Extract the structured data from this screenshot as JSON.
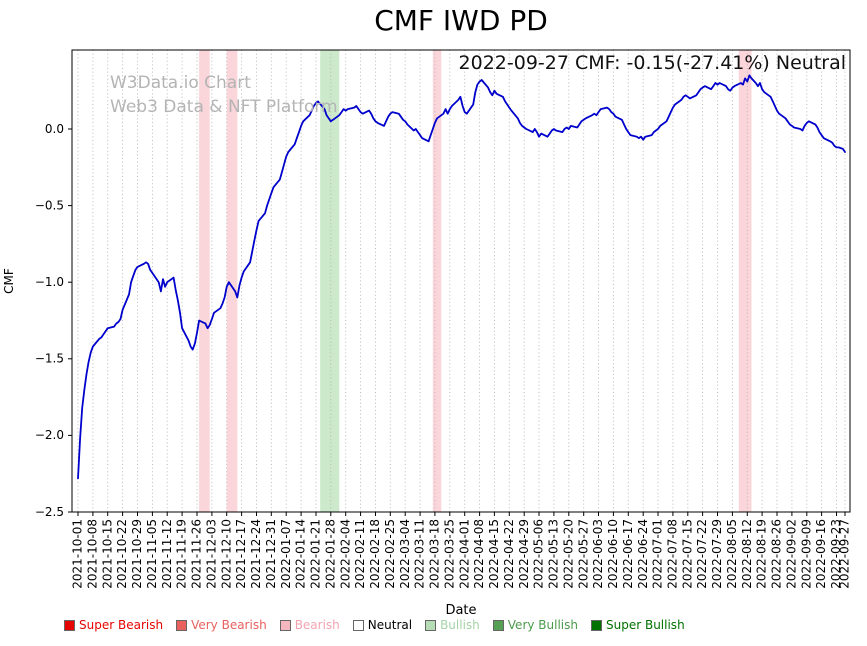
{
  "figure": {
    "annotation": "2022-09-27 CMF: -0.15(-27.41%) Neutral",
    "watermark_line1": "W3Data.io Chart",
    "watermark_line2": "Web3 Data & NFT Platform"
  },
  "chart_data": {
    "type": "line",
    "title": "CMF IWD PD",
    "xlabel": "Date",
    "ylabel": "CMF",
    "ylim": [
      -2.5,
      0.52
    ],
    "grid": "vertical-dotted",
    "legend_position": "bottom",
    "yticks": [
      0.0,
      -0.5,
      -1.0,
      -1.5,
      -2.0,
      -2.5
    ],
    "ytick_labels": [
      "0.0",
      "−0.5",
      "−1.0",
      "−1.5",
      "−2.0",
      "−2.5"
    ],
    "x_start_date": "2021-10-01",
    "x_tick_labels": [
      "2021-10-01",
      "2021-10-08",
      "2021-10-15",
      "2021-10-22",
      "2021-10-29",
      "2021-11-05",
      "2021-11-12",
      "2021-11-19",
      "2021-11-26",
      "2021-12-03",
      "2021-12-10",
      "2021-12-17",
      "2021-12-24",
      "2021-12-31",
      "2022-01-07",
      "2022-01-14",
      "2022-01-21",
      "2022-01-28",
      "2022-02-04",
      "2022-02-11",
      "2022-02-18",
      "2022-02-25",
      "2022-03-04",
      "2022-03-11",
      "2022-03-18",
      "2022-03-25",
      "2022-04-01",
      "2022-04-08",
      "2022-04-15",
      "2022-04-22",
      "2022-04-29",
      "2022-05-06",
      "2022-05-13",
      "2022-05-20",
      "2022-05-27",
      "2022-06-03",
      "2022-06-10",
      "2022-06-17",
      "2022-06-24",
      "2022-07-01",
      "2022-07-08",
      "2022-07-15",
      "2022-07-22",
      "2022-07-29",
      "2022-08-05",
      "2022-08-12",
      "2022-08-19",
      "2022-08-26",
      "2022-09-02",
      "2022-09-09",
      "2022-09-16",
      "2022-09-23",
      "2022-09-27"
    ],
    "latest": {
      "date": "2022-09-27",
      "cmf": -0.15,
      "change_pct": -27.41,
      "signal": "Neutral"
    },
    "series": [
      {
        "name": "CMF",
        "color": "#0000cc",
        "x_unit": "days since 2021-10-01",
        "points": [
          [
            0,
            -2.28
          ],
          [
            1,
            -2.02
          ],
          [
            2,
            -1.82
          ],
          [
            3,
            -1.7
          ],
          [
            4,
            -1.6
          ],
          [
            5,
            -1.52
          ],
          [
            6,
            -1.46
          ],
          [
            7,
            -1.42
          ],
          [
            10,
            -1.37
          ],
          [
            11,
            -1.36
          ],
          [
            12,
            -1.34
          ],
          [
            13,
            -1.32
          ],
          [
            14,
            -1.3
          ],
          [
            17,
            -1.29
          ],
          [
            18,
            -1.27
          ],
          [
            19,
            -1.26
          ],
          [
            20,
            -1.24
          ],
          [
            21,
            -1.18
          ],
          [
            24,
            -1.08
          ],
          [
            25,
            -1.0
          ],
          [
            26,
            -0.96
          ],
          [
            27,
            -0.92
          ],
          [
            28,
            -0.9
          ],
          [
            31,
            -0.88
          ],
          [
            32,
            -0.87
          ],
          [
            33,
            -0.88
          ],
          [
            34,
            -0.92
          ],
          [
            35,
            -0.94
          ],
          [
            38,
            -1.0
          ],
          [
            39,
            -1.06
          ],
          [
            40,
            -0.98
          ],
          [
            41,
            -1.03
          ],
          [
            42,
            -1.0
          ],
          [
            45,
            -0.97
          ],
          [
            46,
            -1.05
          ],
          [
            47,
            -1.12
          ],
          [
            48,
            -1.2
          ],
          [
            49,
            -1.3
          ],
          [
            52,
            -1.38
          ],
          [
            53,
            -1.42
          ],
          [
            54,
            -1.44
          ],
          [
            55,
            -1.4
          ],
          [
            56,
            -1.33
          ],
          [
            57,
            -1.25
          ],
          [
            60,
            -1.27
          ],
          [
            61,
            -1.3
          ],
          [
            62,
            -1.28
          ],
          [
            63,
            -1.24
          ],
          [
            64,
            -1.2
          ],
          [
            67,
            -1.17
          ],
          [
            68,
            -1.14
          ],
          [
            69,
            -1.1
          ],
          [
            70,
            -1.03
          ],
          [
            71,
            -1.0
          ],
          [
            74,
            -1.06
          ],
          [
            75,
            -1.1
          ],
          [
            76,
            -1.02
          ],
          [
            77,
            -0.97
          ],
          [
            78,
            -0.93
          ],
          [
            81,
            -0.87
          ],
          [
            82,
            -0.8
          ],
          [
            83,
            -0.73
          ],
          [
            84,
            -0.66
          ],
          [
            85,
            -0.6
          ],
          [
            88,
            -0.55
          ],
          [
            89,
            -0.5
          ],
          [
            90,
            -0.46
          ],
          [
            91,
            -0.42
          ],
          [
            92,
            -0.38
          ],
          [
            95,
            -0.33
          ],
          [
            96,
            -0.28
          ],
          [
            97,
            -0.23
          ],
          [
            98,
            -0.18
          ],
          [
            99,
            -0.15
          ],
          [
            102,
            -0.1
          ],
          [
            103,
            -0.06
          ],
          [
            104,
            -0.02
          ],
          [
            105,
            0.02
          ],
          [
            106,
            0.05
          ],
          [
            109,
            0.09
          ],
          [
            110,
            0.12
          ],
          [
            111,
            0.15
          ],
          [
            112,
            0.17
          ],
          [
            113,
            0.18
          ],
          [
            116,
            0.13
          ],
          [
            117,
            0.09
          ],
          [
            118,
            0.07
          ],
          [
            119,
            0.05
          ],
          [
            120,
            0.06
          ],
          [
            123,
            0.09
          ],
          [
            124,
            0.11
          ],
          [
            125,
            0.13
          ],
          [
            126,
            0.12
          ],
          [
            127,
            0.13
          ],
          [
            130,
            0.14
          ],
          [
            131,
            0.15
          ],
          [
            132,
            0.13
          ],
          [
            133,
            0.11
          ],
          [
            134,
            0.1
          ],
          [
            137,
            0.12
          ],
          [
            138,
            0.1
          ],
          [
            139,
            0.07
          ],
          [
            140,
            0.05
          ],
          [
            141,
            0.04
          ],
          [
            144,
            0.02
          ],
          [
            145,
            0.05
          ],
          [
            146,
            0.08
          ],
          [
            147,
            0.1
          ],
          [
            148,
            0.11
          ],
          [
            151,
            0.1
          ],
          [
            152,
            0.08
          ],
          [
            153,
            0.06
          ],
          [
            154,
            0.05
          ],
          [
            155,
            0.03
          ],
          [
            158,
            -0.01
          ],
          [
            159,
            0.0
          ],
          [
            160,
            -0.02
          ],
          [
            161,
            -0.04
          ],
          [
            162,
            -0.06
          ],
          [
            165,
            -0.08
          ],
          [
            166,
            -0.04
          ],
          [
            167,
            0.0
          ],
          [
            168,
            0.04
          ],
          [
            169,
            0.07
          ],
          [
            172,
            0.1
          ],
          [
            173,
            0.13
          ],
          [
            174,
            0.1
          ],
          [
            175,
            0.13
          ],
          [
            176,
            0.15
          ],
          [
            179,
            0.19
          ],
          [
            180,
            0.21
          ],
          [
            181,
            0.15
          ],
          [
            182,
            0.11
          ],
          [
            183,
            0.1
          ],
          [
            186,
            0.16
          ],
          [
            187,
            0.24
          ],
          [
            188,
            0.29
          ],
          [
            189,
            0.31
          ],
          [
            190,
            0.32
          ],
          [
            193,
            0.27
          ],
          [
            194,
            0.24
          ],
          [
            195,
            0.22
          ],
          [
            196,
            0.25
          ],
          [
            197,
            0.23
          ],
          [
            200,
            0.21
          ],
          [
            201,
            0.18
          ],
          [
            202,
            0.16
          ],
          [
            203,
            0.14
          ],
          [
            204,
            0.12
          ],
          [
            207,
            0.07
          ],
          [
            208,
            0.04
          ],
          [
            209,
            0.02
          ],
          [
            210,
            0.01
          ],
          [
            211,
            0.0
          ],
          [
            214,
            -0.02
          ],
          [
            215,
            0.0
          ],
          [
            216,
            -0.02
          ],
          [
            217,
            -0.05
          ],
          [
            218,
            -0.03
          ],
          [
            221,
            -0.05
          ],
          [
            222,
            -0.03
          ],
          [
            223,
            -0.01
          ],
          [
            224,
            0.0
          ],
          [
            225,
            -0.01
          ],
          [
            228,
            -0.02
          ],
          [
            229,
            0.0
          ],
          [
            230,
            0.01
          ],
          [
            231,
            0.0
          ],
          [
            232,
            0.02
          ],
          [
            235,
            0.01
          ],
          [
            236,
            0.03
          ],
          [
            237,
            0.05
          ],
          [
            238,
            0.06
          ],
          [
            239,
            0.07
          ],
          [
            242,
            0.09
          ],
          [
            243,
            0.1
          ],
          [
            244,
            0.09
          ],
          [
            245,
            0.11
          ],
          [
            246,
            0.13
          ],
          [
            249,
            0.14
          ],
          [
            250,
            0.13
          ],
          [
            251,
            0.11
          ],
          [
            252,
            0.1
          ],
          [
            253,
            0.08
          ],
          [
            256,
            0.06
          ],
          [
            257,
            0.03
          ],
          [
            258,
            0.0
          ],
          [
            259,
            -0.02
          ],
          [
            260,
            -0.04
          ],
          [
            263,
            -0.05
          ],
          [
            264,
            -0.06
          ],
          [
            265,
            -0.05
          ],
          [
            266,
            -0.07
          ],
          [
            267,
            -0.05
          ],
          [
            270,
            -0.04
          ],
          [
            271,
            -0.02
          ],
          [
            272,
            -0.01
          ],
          [
            273,
            0.0
          ],
          [
            274,
            0.02
          ],
          [
            277,
            0.05
          ],
          [
            278,
            0.08
          ],
          [
            279,
            0.11
          ],
          [
            280,
            0.14
          ],
          [
            281,
            0.16
          ],
          [
            284,
            0.19
          ],
          [
            285,
            0.21
          ],
          [
            286,
            0.22
          ],
          [
            287,
            0.21
          ],
          [
            288,
            0.2
          ],
          [
            291,
            0.22
          ],
          [
            292,
            0.24
          ],
          [
            293,
            0.26
          ],
          [
            294,
            0.27
          ],
          [
            295,
            0.28
          ],
          [
            298,
            0.26
          ],
          [
            299,
            0.28
          ],
          [
            300,
            0.3
          ],
          [
            301,
            0.29
          ],
          [
            302,
            0.3
          ],
          [
            305,
            0.28
          ],
          [
            306,
            0.26
          ],
          [
            307,
            0.25
          ],
          [
            308,
            0.27
          ],
          [
            309,
            0.28
          ],
          [
            312,
            0.3
          ],
          [
            313,
            0.29
          ],
          [
            314,
            0.33
          ],
          [
            315,
            0.31
          ],
          [
            316,
            0.35
          ],
          [
            317,
            0.33
          ],
          [
            319,
            0.3
          ],
          [
            320,
            0.28
          ],
          [
            321,
            0.3
          ],
          [
            322,
            0.26
          ],
          [
            323,
            0.24
          ],
          [
            326,
            0.21
          ],
          [
            327,
            0.18
          ],
          [
            328,
            0.15
          ],
          [
            329,
            0.12
          ],
          [
            330,
            0.1
          ],
          [
            333,
            0.07
          ],
          [
            334,
            0.05
          ],
          [
            335,
            0.03
          ],
          [
            336,
            0.02
          ],
          [
            337,
            0.01
          ],
          [
            340,
            0.0
          ],
          [
            341,
            -0.01
          ],
          [
            342,
            0.02
          ],
          [
            343,
            0.04
          ],
          [
            344,
            0.05
          ],
          [
            347,
            0.03
          ],
          [
            348,
            0.01
          ],
          [
            349,
            -0.02
          ],
          [
            350,
            -0.04
          ],
          [
            351,
            -0.06
          ],
          [
            354,
            -0.08
          ],
          [
            355,
            -0.09
          ],
          [
            356,
            -0.11
          ],
          [
            357,
            -0.12
          ],
          [
            358,
            -0.12
          ],
          [
            360,
            -0.13
          ],
          [
            361,
            -0.15
          ]
        ]
      }
    ],
    "signal_bands": [
      {
        "signal": "Bearish",
        "start": "2021-11-27",
        "end": "2021-12-02",
        "color": "#f4a1ad",
        "opacity": 0.45
      },
      {
        "signal": "Bearish",
        "start": "2021-12-10",
        "end": "2021-12-15",
        "color": "#f4a1ad",
        "opacity": 0.45
      },
      {
        "signal": "Bullish",
        "start": "2022-01-23",
        "end": "2022-02-01",
        "color": "#7fc97f",
        "opacity": 0.4
      },
      {
        "signal": "Bearish",
        "start": "2022-03-17",
        "end": "2022-03-21",
        "color": "#f4a1ad",
        "opacity": 0.45
      },
      {
        "signal": "Bearish",
        "start": "2022-08-08",
        "end": "2022-08-14",
        "color": "#f4a1ad",
        "opacity": 0.45
      }
    ],
    "legend": {
      "items": [
        {
          "label": "Super Bearish",
          "color": "#e60400",
          "text_color": "#e60400"
        },
        {
          "label": "Very Bearish",
          "color": "#e8615f",
          "text_color": "#e8615f"
        },
        {
          "label": "Bearish",
          "color": "#f6b6c0",
          "text_color": "#f2a3b0"
        },
        {
          "label": "Neutral",
          "color": "#ffffff",
          "text_color": "#000000"
        },
        {
          "label": "Bullish",
          "color": "#b5dcb5",
          "text_color": "#a6d3a6"
        },
        {
          "label": "Very Bullish",
          "color": "#55a055",
          "text_color": "#4c9a4c"
        },
        {
          "label": "Super Bullish",
          "color": "#017101",
          "text_color": "#017101"
        }
      ]
    }
  }
}
